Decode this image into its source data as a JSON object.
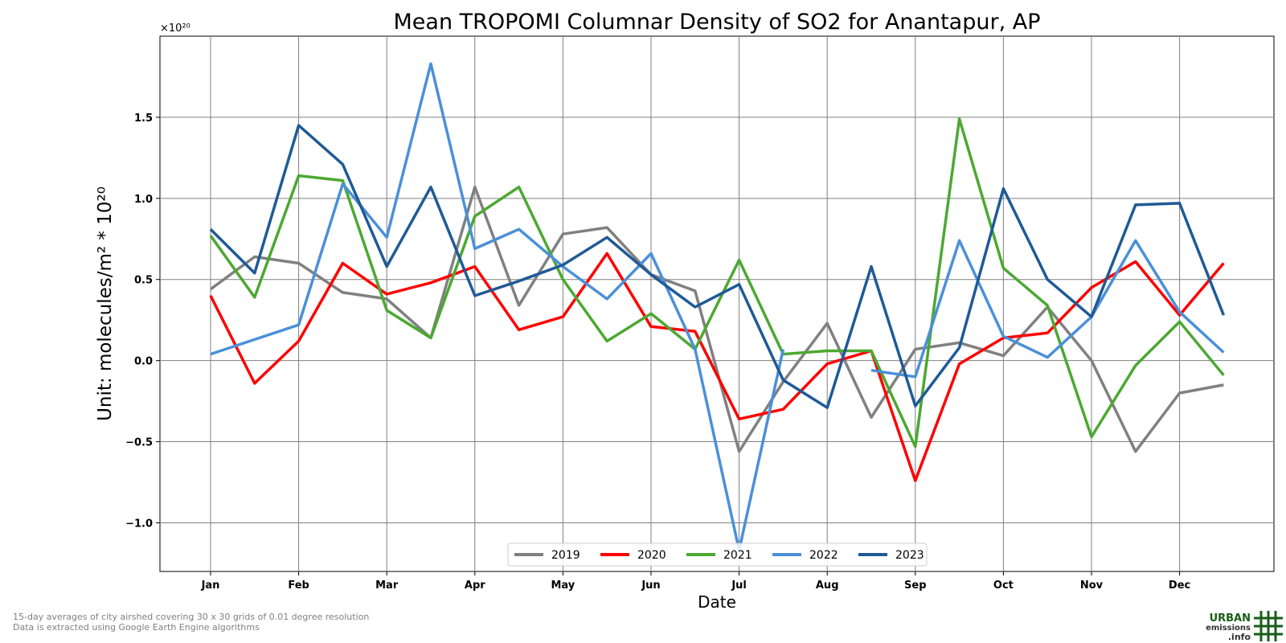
{
  "chart_data": {
    "type": "line",
    "title": "Mean TROPOMI Columnar Density of SO2 for Anantapur, AP",
    "xlabel": "Date",
    "ylabel": "Unit: molecules/m² * 10²⁰",
    "y_multiplier_label": "×10²⁰",
    "ylim": [
      -1.3,
      2.0
    ],
    "yticks": [
      -1.0,
      -0.5,
      0.0,
      0.5,
      1.0,
      1.5
    ],
    "ytick_labels": [
      "−1.0",
      "−0.5",
      "0.0",
      "0.5",
      "1.0",
      "1.5"
    ],
    "x_ticks": [
      "Jan",
      "Feb",
      "Mar",
      "Apr",
      "May",
      "Jun",
      "Jul",
      "Aug",
      "Sep",
      "Oct",
      "Nov",
      "Dec"
    ],
    "grid": true,
    "legend_position": "bottom-center",
    "series": [
      {
        "name": "2019",
        "color": "#808080",
        "values": [
          0.44,
          0.64,
          0.6,
          0.42,
          0.38,
          0.14,
          1.07,
          0.34,
          0.78,
          0.82,
          0.53,
          0.43,
          -0.56,
          -0.13,
          0.23,
          -0.35,
          0.07,
          0.11,
          0.03,
          0.33,
          0.0,
          -0.56,
          -0.2,
          -0.15
        ]
      },
      {
        "name": "2020",
        "color": "#ff0000",
        "values": [
          0.4,
          -0.14,
          0.12,
          0.6,
          0.41,
          0.48,
          0.58,
          0.19,
          0.27,
          0.66,
          0.21,
          0.18,
          -0.36,
          -0.3,
          -0.02,
          0.06,
          -0.74,
          -0.02,
          0.14,
          0.17,
          0.45,
          0.61,
          0.28,
          0.6
        ]
      },
      {
        "name": "2021",
        "color": "#4ca832",
        "values": [
          0.77,
          0.39,
          1.14,
          1.11,
          0.31,
          0.14,
          0.89,
          1.07,
          0.5,
          0.12,
          0.29,
          0.07,
          0.62,
          0.04,
          0.06,
          0.06,
          -0.53,
          1.49,
          0.57,
          0.34,
          -0.47,
          -0.03,
          0.24,
          -0.09
        ]
      },
      {
        "name": "2022",
        "color": "#4a90d9",
        "values": [
          0.04,
          0.13,
          0.22,
          1.09,
          0.76,
          1.83,
          0.69,
          0.81,
          0.58,
          0.38,
          0.66,
          0.07,
          -1.17,
          0.07,
          null,
          -0.06,
          -0.1,
          0.74,
          0.15,
          0.02,
          0.27,
          0.74,
          0.3,
          0.05
        ]
      },
      {
        "name": "2023",
        "color": "#1f5a96",
        "values": [
          0.81,
          0.54,
          1.45,
          1.21,
          0.58,
          1.07,
          0.4,
          0.49,
          0.59,
          0.76,
          0.53,
          0.33,
          0.47,
          -0.12,
          -0.29,
          0.58,
          -0.28,
          0.08,
          1.06,
          0.5,
          0.27,
          0.96,
          0.97,
          0.28
        ]
      }
    ]
  },
  "footnotes": {
    "line1": "15-day averages of city airshed covering 30 x 30 grids of 0.01 degree resolution",
    "line2": "Data is extracted using Google Earth Engine algorithms"
  },
  "logo": {
    "line1": "URBAN",
    "line2": "emissions",
    "line3": ".info",
    "color": "#1a5c1a"
  }
}
